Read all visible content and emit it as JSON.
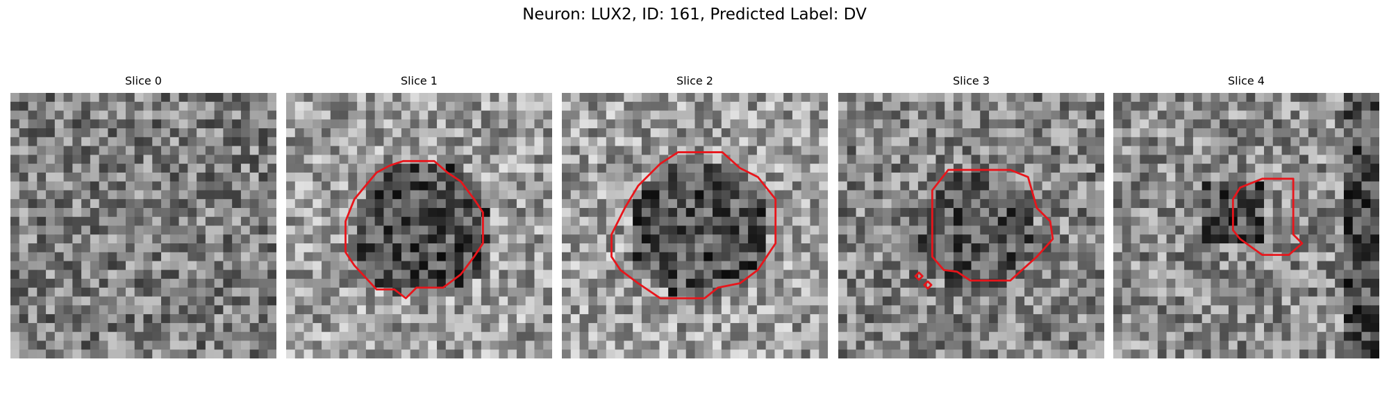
{
  "title": "Neuron: LUX2, ID: 161, Predicted Label: DV",
  "panels": [
    {
      "title": "Slice 0"
    },
    {
      "title": "Slice 1"
    },
    {
      "title": "Slice 2"
    },
    {
      "title": "Slice 3"
    },
    {
      "title": "Slice 4"
    }
  ]
}
